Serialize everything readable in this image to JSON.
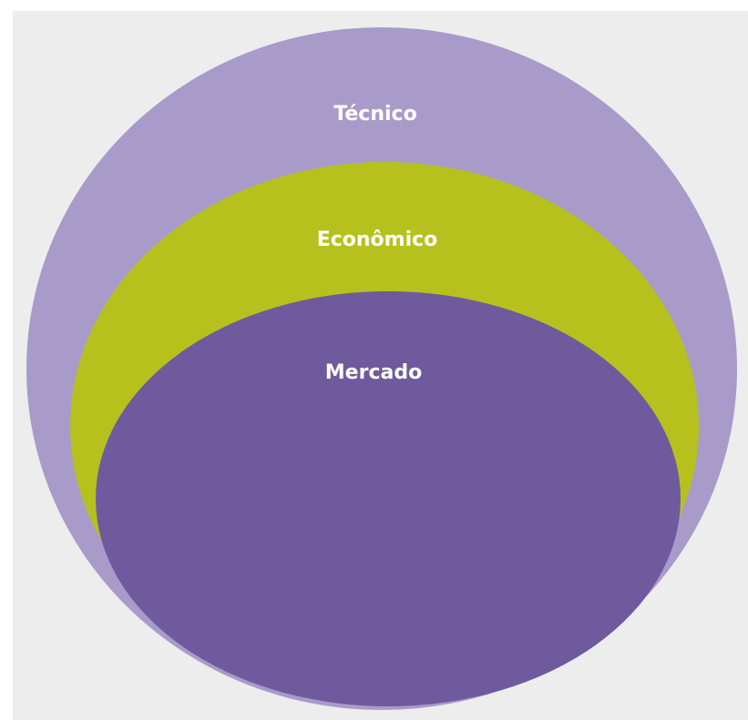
{
  "diagram": {
    "layers": [
      {
        "id": "tecnico",
        "label": "Técnico",
        "color": "#a89bc9"
      },
      {
        "id": "economico",
        "label": "Econômico",
        "color": "#b7c11e"
      },
      {
        "id": "mercado",
        "label": "Mercado",
        "color": "#6f5a9e"
      }
    ],
    "background_color": "#ededed",
    "label_color": "#ffffff"
  }
}
